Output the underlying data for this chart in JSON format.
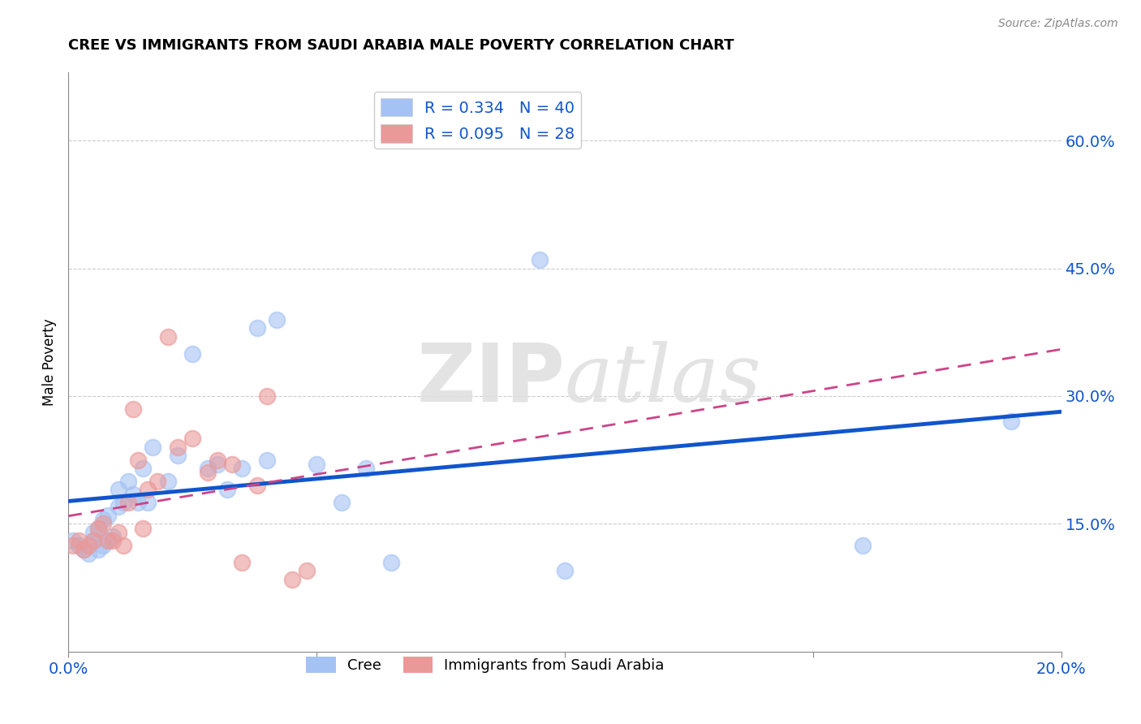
{
  "title": "CREE VS IMMIGRANTS FROM SAUDI ARABIA MALE POVERTY CORRELATION CHART",
  "source": "Source: ZipAtlas.com",
  "ylabel": "Male Poverty",
  "xlim": [
    0.0,
    0.2
  ],
  "ylim": [
    0.0,
    0.68
  ],
  "xticks": [
    0.0,
    0.05,
    0.1,
    0.15,
    0.2
  ],
  "xtick_labels": [
    "0.0%",
    "",
    "",
    "",
    "20.0%"
  ],
  "ytick_vals": [
    0.15,
    0.3,
    0.45,
    0.6
  ],
  "ytick_labels": [
    "15.0%",
    "30.0%",
    "45.0%",
    "60.0%"
  ],
  "cree_R": 0.334,
  "cree_N": 40,
  "saudi_R": 0.095,
  "saudi_N": 28,
  "cree_color": "#a4c2f4",
  "saudi_color": "#ea9999",
  "cree_x": [
    0.001,
    0.002,
    0.003,
    0.004,
    0.005,
    0.005,
    0.006,
    0.006,
    0.007,
    0.007,
    0.008,
    0.008,
    0.009,
    0.01,
    0.01,
    0.011,
    0.012,
    0.013,
    0.014,
    0.015,
    0.016,
    0.017,
    0.02,
    0.022,
    0.025,
    0.028,
    0.03,
    0.032,
    0.035,
    0.038,
    0.04,
    0.042,
    0.05,
    0.055,
    0.06,
    0.065,
    0.095,
    0.1,
    0.16,
    0.19
  ],
  "cree_y": [
    0.13,
    0.125,
    0.12,
    0.115,
    0.13,
    0.14,
    0.12,
    0.145,
    0.125,
    0.155,
    0.13,
    0.16,
    0.135,
    0.17,
    0.19,
    0.175,
    0.2,
    0.185,
    0.175,
    0.215,
    0.175,
    0.24,
    0.2,
    0.23,
    0.35,
    0.215,
    0.22,
    0.19,
    0.215,
    0.38,
    0.225,
    0.39,
    0.22,
    0.175,
    0.215,
    0.105,
    0.46,
    0.095,
    0.125,
    0.27
  ],
  "saudi_x": [
    0.001,
    0.002,
    0.003,
    0.004,
    0.005,
    0.006,
    0.007,
    0.008,
    0.009,
    0.01,
    0.011,
    0.012,
    0.013,
    0.014,
    0.015,
    0.016,
    0.018,
    0.02,
    0.022,
    0.025,
    0.028,
    0.03,
    0.033,
    0.035,
    0.038,
    0.04,
    0.045,
    0.048
  ],
  "saudi_y": [
    0.125,
    0.13,
    0.12,
    0.125,
    0.13,
    0.145,
    0.15,
    0.13,
    0.13,
    0.14,
    0.125,
    0.175,
    0.285,
    0.225,
    0.145,
    0.19,
    0.2,
    0.37,
    0.24,
    0.25,
    0.21,
    0.225,
    0.22,
    0.105,
    0.195,
    0.3,
    0.085,
    0.095
  ],
  "watermark_zip": "ZIP",
  "watermark_atlas": "atlas",
  "background_color": "#ffffff",
  "grid_color": "#cccccc",
  "cree_line_color": "#1155cc",
  "saudi_line_color": "#cc4488",
  "legend_color": "#1155cc"
}
